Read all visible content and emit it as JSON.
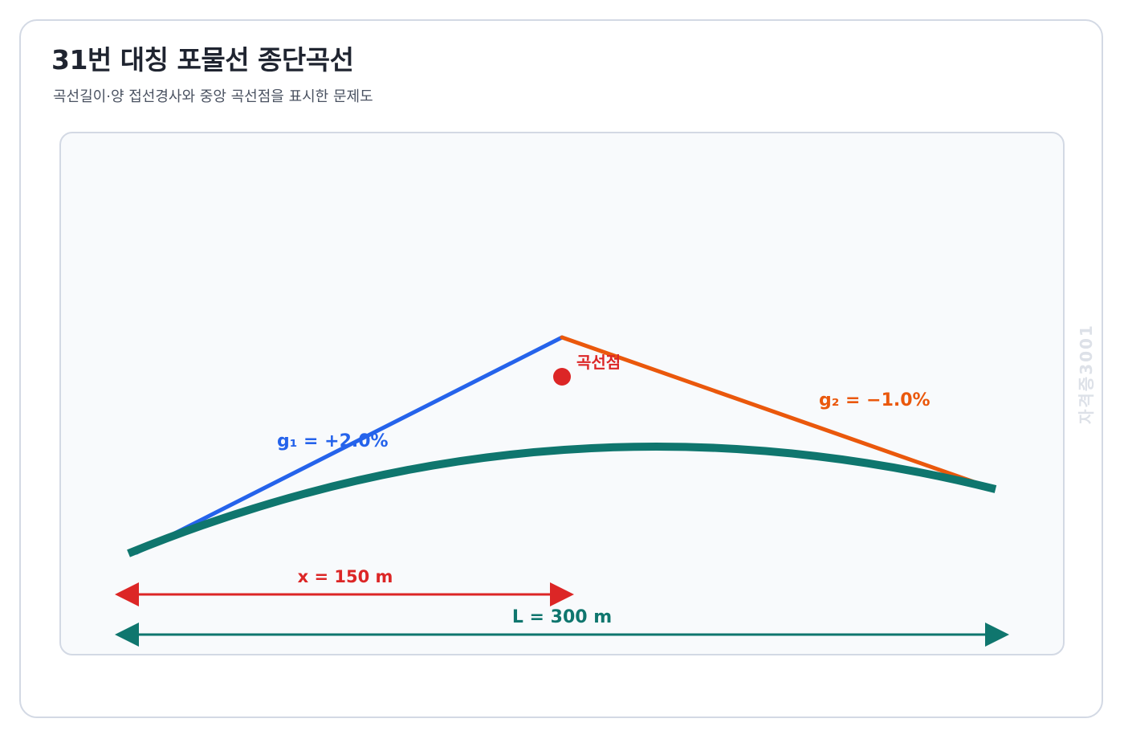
{
  "header": {
    "title": "31번 대칭 포물선 종단곡선",
    "subtitle": "곡선길이·양 접선경사와 중앙 곡선점을 표시한 문제도"
  },
  "diagram": {
    "grade_in_label": "g₁ = +2.0%",
    "grade_out_label": "g₂ = −1.0%",
    "curve_point_label": "곡선점",
    "distance_x_label": "x = 150 m",
    "length_label": "L = 300 m",
    "watermark": "자격증3001"
  },
  "colors": {
    "grade_in": "#2563eb",
    "grade_out": "#ea580c",
    "curve": "#0f766e",
    "point": "#dc2626",
    "x_dim": "#dc2626",
    "l_dim": "#0f766e",
    "watermark": "#dde1e8"
  }
}
